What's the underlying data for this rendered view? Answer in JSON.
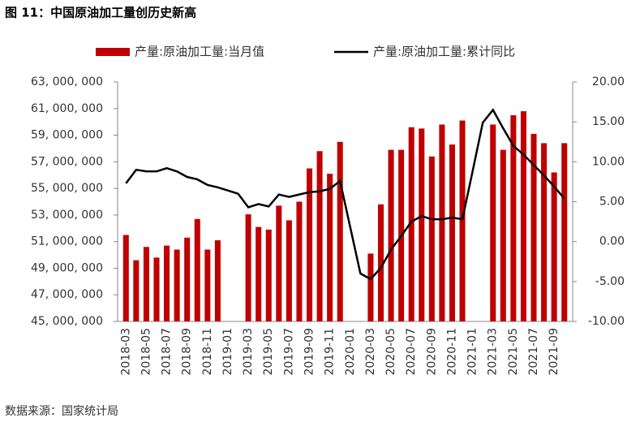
{
  "chart_data": {
    "type": "bar_line",
    "title": "图 11：中国原油加工量创历史新高",
    "source": "数据来源：国家统计局",
    "categories": [
      "2018-03",
      null,
      "2018-05",
      null,
      "2018-07",
      null,
      "2018-09",
      null,
      "2018-11",
      null,
      "2019-01",
      null,
      "2019-03",
      null,
      "2019-05",
      null,
      "2019-07",
      null,
      "2019-09",
      null,
      "2019-11",
      null,
      "2020-01",
      null,
      "2020-03",
      null,
      "2020-05",
      null,
      "2020-07",
      null,
      "2020-09",
      null,
      "2020-11",
      null,
      "2021-01",
      null,
      "2021-03",
      null,
      "2021-05",
      null,
      "2021-07",
      null,
      "2021-09",
      null
    ],
    "series": [
      {
        "name": "产量:原油加工量:当月值",
        "type": "bar",
        "color": "#c00000",
        "axis": "y",
        "values": [
          51500000,
          49600000,
          50600000,
          49800000,
          50700000,
          50400000,
          51300000,
          52700000,
          50400000,
          51100000,
          null,
          null,
          53050000,
          52100000,
          51900000,
          53700000,
          52600000,
          54000000,
          56500000,
          57800000,
          56100000,
          58500000,
          null,
          null,
          50100000,
          53800000,
          57900000,
          57900000,
          59600000,
          59500000,
          57400000,
          59800000,
          58300000,
          60100000,
          null,
          null,
          59800000,
          57900000,
          60500000,
          60800000,
          59100000,
          58400000,
          56200000,
          58400000
        ]
      },
      {
        "name": "产量:原油加工量:累计同比",
        "type": "line",
        "color": "#000000",
        "axis": "y2",
        "values": [
          7.3,
          9.0,
          8.8,
          8.8,
          9.2,
          8.8,
          8.1,
          7.8,
          7.1,
          6.8,
          6.4,
          6.0,
          4.3,
          4.7,
          4.4,
          5.9,
          5.6,
          5.9,
          6.2,
          6.3,
          6.6,
          7.6,
          1.8,
          -4.0,
          -4.7,
          -3.3,
          -1.0,
          0.7,
          2.5,
          3.2,
          2.8,
          2.8,
          3.0,
          2.8,
          8.8,
          14.9,
          16.5,
          14.2,
          12.0,
          10.9,
          9.6,
          8.3,
          6.9,
          5.4
        ]
      }
    ],
    "ylim": [
      45000000,
      63000000
    ],
    "yticks": [
      {
        "value": 45000000,
        "label": "45, 000, 000"
      },
      {
        "value": 47000000,
        "label": "47, 000, 000"
      },
      {
        "value": 49000000,
        "label": "49, 000, 000"
      },
      {
        "value": 51000000,
        "label": "51, 000, 000"
      },
      {
        "value": 53000000,
        "label": "53, 000, 000"
      },
      {
        "value": 55000000,
        "label": "55, 000, 000"
      },
      {
        "value": 57000000,
        "label": "57, 000, 000"
      },
      {
        "value": 59000000,
        "label": "59, 000, 000"
      },
      {
        "value": 61000000,
        "label": "61, 000, 000"
      },
      {
        "value": 63000000,
        "label": "63, 000, 000"
      }
    ],
    "y2lim": [
      -10,
      20
    ],
    "y2ticks": [
      {
        "value": -10,
        "label": "-10.00"
      },
      {
        "value": -5,
        "label": "-5.00"
      },
      {
        "value": 0,
        "label": "0.00"
      },
      {
        "value": 5,
        "label": "5.00"
      },
      {
        "value": 10,
        "label": "10.00"
      },
      {
        "value": 15,
        "label": "15.00"
      },
      {
        "value": 20,
        "label": "20.00"
      }
    ],
    "grid": false,
    "legend": "top"
  }
}
